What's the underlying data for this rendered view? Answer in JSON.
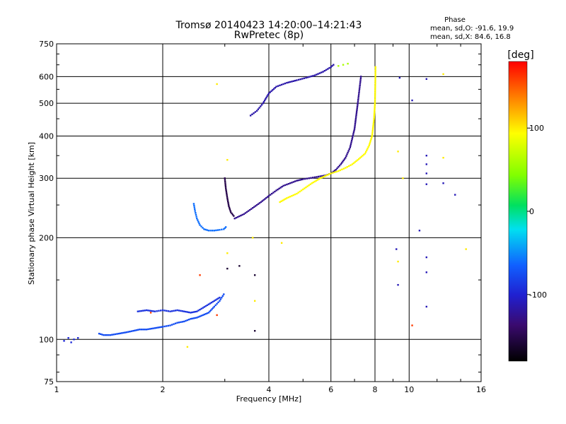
{
  "chart_data": {
    "type": "scatter",
    "title_line1": "Tromsø 20140423 14:20:00–14:21:43",
    "title_line2": "RwPretec (8p)",
    "xlabel": "Frequency [MHz]",
    "ylabel": "Stationary phase Virtual Height [km]",
    "x_scale": "log",
    "y_scale": "log",
    "xlim": [
      1,
      16
    ],
    "ylim": [
      75,
      750
    ],
    "x_ticks": [
      1,
      2,
      4,
      6,
      8,
      10,
      16
    ],
    "y_ticks": [
      75,
      100,
      200,
      300,
      400,
      500,
      600,
      750
    ],
    "grid": true,
    "stats": {
      "title": "Phase",
      "line_o": "mean, sd,O: -91.6, 19.9",
      "line_x": "mean, sd,X:  84.6, 16.8"
    },
    "colorbar": {
      "label": "[deg]",
      "range": [
        -180,
        180
      ],
      "ticks": [
        {
          "value": 100,
          "label": "100"
        },
        {
          "value": 0,
          "label": "0"
        },
        {
          "value": -100,
          "label": "-100"
        }
      ]
    },
    "traces": [
      {
        "name": "E-layer trace (2nd hop)",
        "phase": -75,
        "points": [
          [
            1.32,
            104
          ],
          [
            1.36,
            103
          ],
          [
            1.42,
            103
          ],
          [
            1.5,
            104
          ],
          [
            1.58,
            105
          ],
          [
            1.65,
            106
          ],
          [
            1.72,
            107
          ],
          [
            1.8,
            107
          ],
          [
            1.9,
            108
          ],
          [
            2.0,
            109
          ],
          [
            2.1,
            110
          ],
          [
            2.2,
            112
          ],
          [
            2.3,
            113
          ],
          [
            2.4,
            115
          ],
          [
            2.5,
            116
          ],
          [
            2.6,
            118
          ],
          [
            2.7,
            120
          ],
          [
            2.8,
            125
          ],
          [
            2.9,
            130
          ],
          [
            2.98,
            136
          ]
        ]
      },
      {
        "name": "E-layer upper trace",
        "phase": -90,
        "points": [
          [
            1.7,
            121
          ],
          [
            1.8,
            122
          ],
          [
            1.9,
            121
          ],
          [
            2.0,
            122
          ],
          [
            2.1,
            121
          ],
          [
            2.2,
            122
          ],
          [
            2.3,
            121
          ],
          [
            2.4,
            120
          ],
          [
            2.5,
            121
          ],
          [
            2.6,
            124
          ],
          [
            2.7,
            127
          ],
          [
            2.8,
            130
          ],
          [
            2.9,
            133
          ]
        ]
      },
      {
        "name": "low frequency points",
        "phase": -95,
        "points": [
          [
            1.05,
            99
          ],
          [
            1.08,
            101
          ],
          [
            1.1,
            98
          ],
          [
            1.12,
            100
          ],
          [
            1.15,
            101
          ]
        ]
      },
      {
        "name": "F-layer hook (cyan)",
        "phase": -60,
        "points": [
          [
            2.45,
            252
          ],
          [
            2.47,
            240
          ],
          [
            2.5,
            228
          ],
          [
            2.55,
            218
          ],
          [
            2.62,
            212
          ],
          [
            2.7,
            210
          ],
          [
            2.8,
            210
          ],
          [
            2.9,
            211
          ],
          [
            2.98,
            212
          ],
          [
            3.02,
            215
          ]
        ]
      },
      {
        "name": "F-layer O-mode cusp",
        "phase": -150,
        "points": [
          [
            3.0,
            300
          ],
          [
            3.02,
            280
          ],
          [
            3.05,
            262
          ],
          [
            3.08,
            248
          ],
          [
            3.12,
            238
          ],
          [
            3.18,
            232
          ]
        ]
      },
      {
        "name": "F-layer O-mode main",
        "phase": -125,
        "points": [
          [
            3.2,
            228
          ],
          [
            3.4,
            235
          ],
          [
            3.6,
            245
          ],
          [
            3.8,
            255
          ],
          [
            4.0,
            266
          ],
          [
            4.2,
            276
          ],
          [
            4.4,
            285
          ],
          [
            4.6,
            290
          ],
          [
            4.8,
            295
          ],
          [
            5.0,
            298
          ],
          [
            5.2,
            300
          ],
          [
            5.4,
            302
          ],
          [
            5.6,
            304
          ],
          [
            5.8,
            306
          ],
          [
            6.0,
            310
          ],
          [
            6.2,
            318
          ],
          [
            6.4,
            330
          ],
          [
            6.6,
            345
          ],
          [
            6.8,
            370
          ],
          [
            7.0,
            420
          ],
          [
            7.15,
            500
          ],
          [
            7.3,
            600
          ]
        ]
      },
      {
        "name": "F-layer X-mode",
        "phase": 95,
        "points": [
          [
            4.3,
            255
          ],
          [
            4.5,
            262
          ],
          [
            4.8,
            270
          ],
          [
            5.0,
            278
          ],
          [
            5.3,
            290
          ],
          [
            5.6,
            300
          ],
          [
            6.0,
            310
          ],
          [
            6.3,
            315
          ],
          [
            6.6,
            322
          ],
          [
            6.9,
            330
          ],
          [
            7.2,
            342
          ],
          [
            7.5,
            355
          ],
          [
            7.7,
            375
          ],
          [
            7.85,
            400
          ],
          [
            7.95,
            450
          ],
          [
            8.0,
            500
          ],
          [
            8.02,
            580
          ],
          [
            8.03,
            640
          ]
        ]
      },
      {
        "name": "F-layer upper (2nd hop)",
        "phase": -115,
        "points": [
          [
            3.55,
            460
          ],
          [
            3.7,
            475
          ],
          [
            3.85,
            500
          ],
          [
            4.0,
            535
          ],
          [
            4.2,
            560
          ],
          [
            4.5,
            575
          ],
          [
            4.8,
            585
          ],
          [
            5.1,
            595
          ],
          [
            5.4,
            605
          ],
          [
            5.7,
            620
          ],
          [
            6.0,
            640
          ],
          [
            6.1,
            650
          ]
        ]
      },
      {
        "name": "F-layer upper X",
        "phase": 60,
        "points": [
          [
            6.3,
            645
          ],
          [
            6.5,
            650
          ],
          [
            6.7,
            655
          ]
        ]
      },
      {
        "name": "scattered points",
        "phase": -110,
        "points": [
          [
            9.2,
            185
          ],
          [
            9.3,
            145
          ],
          [
            9.4,
            595
          ],
          [
            11.2,
            590
          ],
          [
            11.2,
            350
          ],
          [
            11.2,
            330
          ],
          [
            11.2,
            310
          ],
          [
            11.2,
            288
          ],
          [
            11.2,
            175
          ],
          [
            11.2,
            158
          ],
          [
            11.2,
            125
          ],
          [
            10.2,
            510
          ],
          [
            10.7,
            210
          ],
          [
            12.5,
            290
          ],
          [
            13.5,
            268
          ]
        ]
      },
      {
        "name": "scattered warm points",
        "phase": 100,
        "points": [
          [
            2.85,
            570
          ],
          [
            3.05,
            340
          ],
          [
            3.05,
            180
          ],
          [
            4.35,
            193
          ],
          [
            3.65,
            130
          ],
          [
            3.6,
            200
          ],
          [
            9.3,
            360
          ],
          [
            9.3,
            170
          ],
          [
            12.5,
            610
          ],
          [
            12.5,
            345
          ],
          [
            14.5,
            185
          ],
          [
            2.35,
            95
          ],
          [
            9.6,
            300
          ]
        ]
      },
      {
        "name": "scattered red points",
        "phase": 160,
        "points": [
          [
            2.55,
            155
          ],
          [
            2.85,
            118
          ],
          [
            10.2,
            110
          ],
          [
            1.85,
            120
          ]
        ]
      },
      {
        "name": "scattered purple points",
        "phase": -160,
        "points": [
          [
            3.05,
            162
          ],
          [
            3.65,
            155
          ],
          [
            3.65,
            106
          ],
          [
            3.3,
            165
          ]
        ]
      }
    ]
  }
}
